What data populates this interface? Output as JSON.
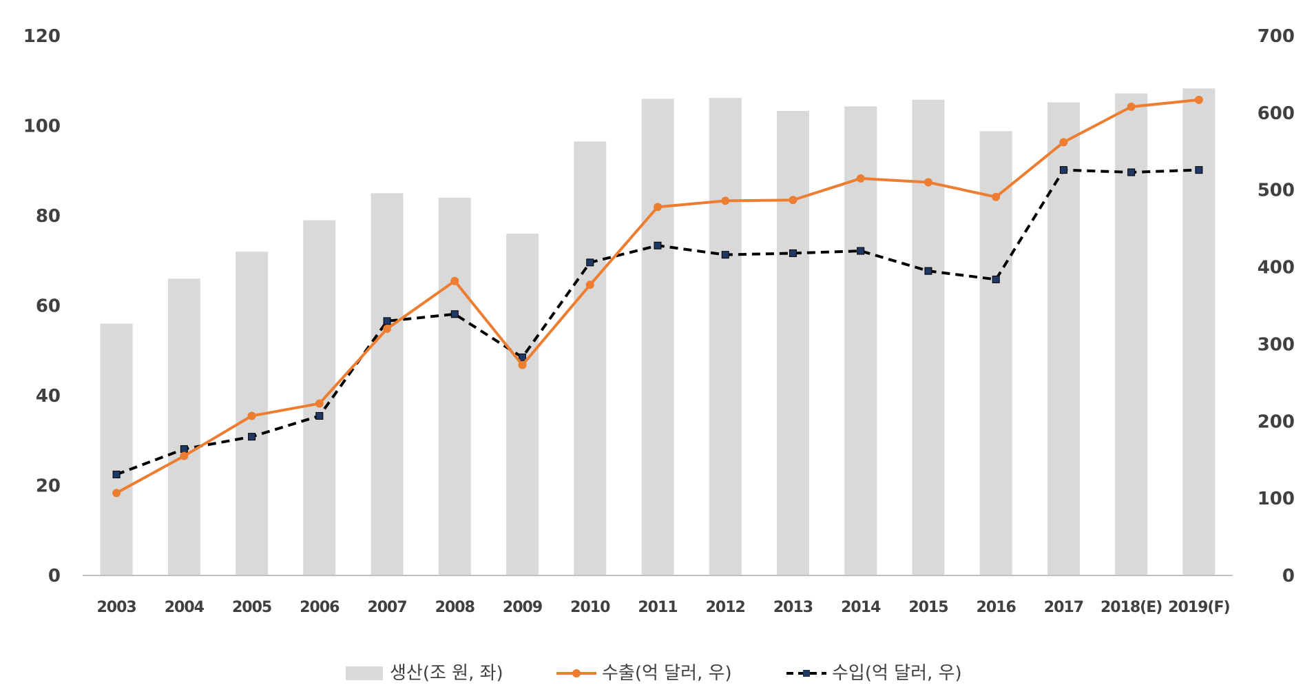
{
  "chart_data": {
    "type": "bar",
    "categories": [
      "2003",
      "2004",
      "2005",
      "2006",
      "2007",
      "2008",
      "2009",
      "2010",
      "2011",
      "2012",
      "2013",
      "2014",
      "2015",
      "2016",
      "2017",
      "2018(E)",
      "2019(F)"
    ],
    "y_left": {
      "ylim": [
        0,
        120
      ],
      "ticks": [
        "0",
        "20",
        "40",
        "60",
        "80",
        "100",
        "120"
      ]
    },
    "y_right": {
      "ylim": [
        0,
        700
      ],
      "ticks": [
        "0",
        "100",
        "200",
        "300",
        "400",
        "500",
        "600",
        "700"
      ]
    },
    "series": [
      {
        "name": "생산(조 원, 좌)",
        "kind": "bar",
        "axis": "left",
        "color": "#d9d9d9",
        "values": [
          56,
          66,
          72,
          79,
          85,
          84,
          76,
          96.5,
          106,
          106.2,
          103.3,
          104.3,
          105.8,
          98.8,
          105.2,
          107.2,
          108.3
        ]
      },
      {
        "name": "수출(억 달러, 우)",
        "kind": "line",
        "axis": "right",
        "color": "#ed7d31",
        "values": [
          107,
          155,
          207,
          223,
          320,
          382,
          273,
          377,
          478,
          486,
          487,
          515,
          510,
          491,
          562,
          608,
          617
        ]
      },
      {
        "name": "수입(억 달러, 우)",
        "kind": "line-dashed",
        "axis": "right",
        "color": "#000000",
        "marker_color": "#1f3864",
        "values": [
          131,
          164,
          180,
          207,
          330,
          339,
          283,
          406,
          428,
          416,
          418,
          421,
          395,
          384,
          526,
          523,
          526
        ]
      }
    ],
    "grid": false,
    "legend_position": "bottom"
  }
}
